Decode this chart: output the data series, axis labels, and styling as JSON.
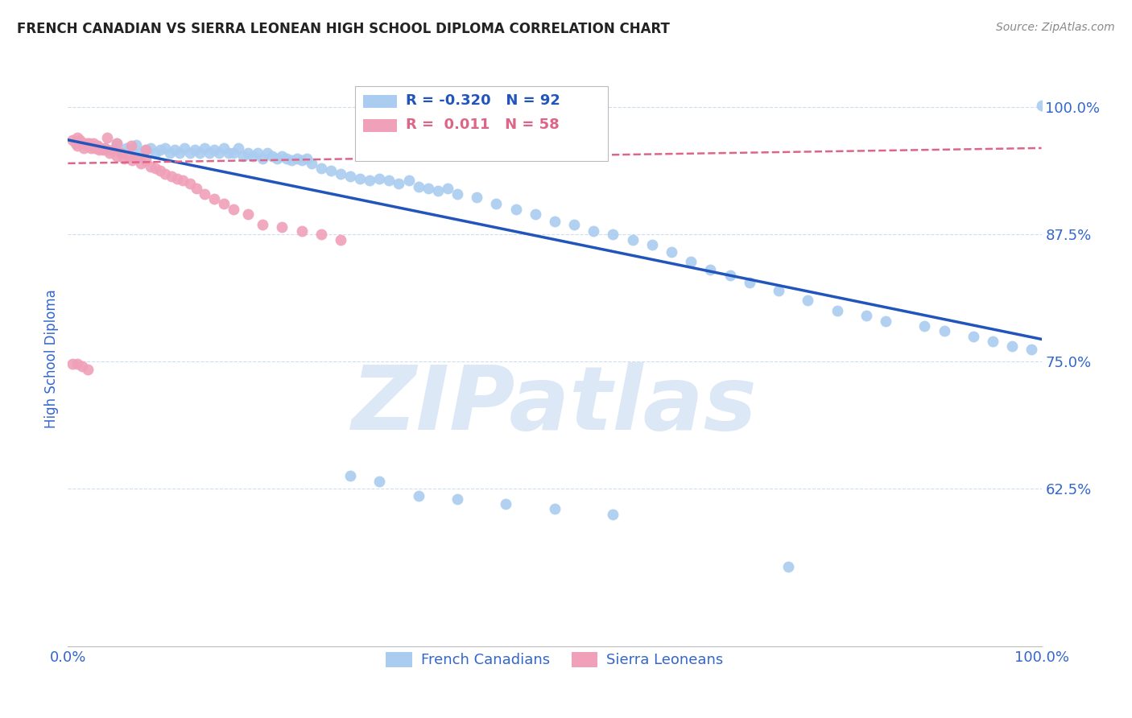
{
  "title": "FRENCH CANADIAN VS SIERRA LEONEAN HIGH SCHOOL DIPLOMA CORRELATION CHART",
  "source": "Source: ZipAtlas.com",
  "ylabel": "High School Diploma",
  "watermark": "ZIPatlas",
  "xmin": 0.0,
  "xmax": 1.0,
  "ymin": 0.47,
  "ymax": 1.035,
  "yticks": [
    0.625,
    0.75,
    0.875,
    1.0
  ],
  "ytick_labels": [
    "62.5%",
    "75.0%",
    "87.5%",
    "100.0%"
  ],
  "xticks": [
    0.0,
    1.0
  ],
  "xtick_labels": [
    "0.0%",
    "100.0%"
  ],
  "blue_color": "#aaccf0",
  "pink_color": "#f0a0b8",
  "blue_line_color": "#2255bb",
  "pink_line_color": "#dd6688",
  "R_blue": -0.32,
  "N_blue": 92,
  "R_pink": 0.011,
  "N_pink": 58,
  "blue_line_x": [
    0.0,
    1.0
  ],
  "blue_line_y": [
    0.968,
    0.772
  ],
  "pink_line_x": [
    0.0,
    1.0
  ],
  "pink_line_y": [
    0.945,
    0.96
  ],
  "tick_label_color": "#3366cc",
  "ylabel_color": "#3366cc",
  "grid_color": "#d0dded",
  "title_color": "#222222",
  "source_color": "#888888",
  "watermark_color": "#dce8f5",
  "legend_box_color": "#ddeefc",
  "legend_text_color": "#3366cc",
  "blue_scatter_x": [
    0.038,
    0.05,
    0.055,
    0.06,
    0.065,
    0.07,
    0.075,
    0.08,
    0.085,
    0.09,
    0.095,
    0.1,
    0.105,
    0.11,
    0.115,
    0.12,
    0.125,
    0.13,
    0.135,
    0.14,
    0.145,
    0.15,
    0.155,
    0.16,
    0.165,
    0.17,
    0.175,
    0.18,
    0.185,
    0.19,
    0.195,
    0.2,
    0.205,
    0.21,
    0.215,
    0.22,
    0.225,
    0.23,
    0.235,
    0.24,
    0.245,
    0.25,
    0.26,
    0.27,
    0.28,
    0.29,
    0.3,
    0.31,
    0.32,
    0.33,
    0.34,
    0.35,
    0.36,
    0.37,
    0.38,
    0.39,
    0.4,
    0.42,
    0.44,
    0.46,
    0.48,
    0.5,
    0.52,
    0.54,
    0.56,
    0.58,
    0.6,
    0.62,
    0.64,
    0.66,
    0.68,
    0.7,
    0.73,
    0.76,
    0.79,
    0.82,
    0.84,
    0.88,
    0.9,
    0.93,
    0.95,
    0.97,
    0.99,
    0.29,
    0.32,
    0.36,
    0.4,
    0.45,
    0.5,
    0.56,
    0.74,
    1.0
  ],
  "blue_scatter_y": [
    0.96,
    0.965,
    0.955,
    0.96,
    0.958,
    0.963,
    0.955,
    0.958,
    0.96,
    0.955,
    0.958,
    0.96,
    0.955,
    0.958,
    0.955,
    0.96,
    0.955,
    0.958,
    0.955,
    0.96,
    0.955,
    0.958,
    0.955,
    0.96,
    0.955,
    0.955,
    0.96,
    0.952,
    0.955,
    0.952,
    0.955,
    0.95,
    0.955,
    0.952,
    0.95,
    0.952,
    0.95,
    0.948,
    0.95,
    0.948,
    0.95,
    0.945,
    0.94,
    0.938,
    0.935,
    0.932,
    0.93,
    0.928,
    0.93,
    0.928,
    0.925,
    0.928,
    0.922,
    0.92,
    0.918,
    0.92,
    0.915,
    0.912,
    0.905,
    0.9,
    0.895,
    0.888,
    0.885,
    0.878,
    0.875,
    0.87,
    0.865,
    0.858,
    0.848,
    0.84,
    0.835,
    0.828,
    0.82,
    0.81,
    0.8,
    0.795,
    0.79,
    0.785,
    0.78,
    0.775,
    0.77,
    0.765,
    0.762,
    0.638,
    0.632,
    0.618,
    0.615,
    0.61,
    0.605,
    0.6,
    0.548,
    1.002
  ],
  "pink_scatter_x": [
    0.005,
    0.008,
    0.01,
    0.012,
    0.014,
    0.016,
    0.018,
    0.02,
    0.022,
    0.024,
    0.026,
    0.028,
    0.03,
    0.032,
    0.034,
    0.036,
    0.038,
    0.04,
    0.043,
    0.046,
    0.05,
    0.054,
    0.058,
    0.062,
    0.066,
    0.07,
    0.075,
    0.08,
    0.085,
    0.09,
    0.095,
    0.1,
    0.106,
    0.112,
    0.118,
    0.125,
    0.132,
    0.14,
    0.15,
    0.16,
    0.17,
    0.185,
    0.2,
    0.22,
    0.24,
    0.26,
    0.28,
    0.01,
    0.02,
    0.03,
    0.04,
    0.05,
    0.065,
    0.08,
    0.005,
    0.01,
    0.015,
    0.02
  ],
  "pink_scatter_y": [
    0.968,
    0.965,
    0.962,
    0.968,
    0.965,
    0.96,
    0.965,
    0.962,
    0.965,
    0.96,
    0.965,
    0.96,
    0.962,
    0.958,
    0.96,
    0.958,
    0.96,
    0.958,
    0.955,
    0.958,
    0.952,
    0.955,
    0.95,
    0.952,
    0.948,
    0.95,
    0.945,
    0.948,
    0.942,
    0.94,
    0.938,
    0.935,
    0.932,
    0.93,
    0.928,
    0.925,
    0.92,
    0.915,
    0.91,
    0.905,
    0.9,
    0.895,
    0.885,
    0.882,
    0.878,
    0.875,
    0.87,
    0.97,
    0.965,
    0.962,
    0.97,
    0.965,
    0.962,
    0.958,
    0.748,
    0.748,
    0.745,
    0.742
  ]
}
